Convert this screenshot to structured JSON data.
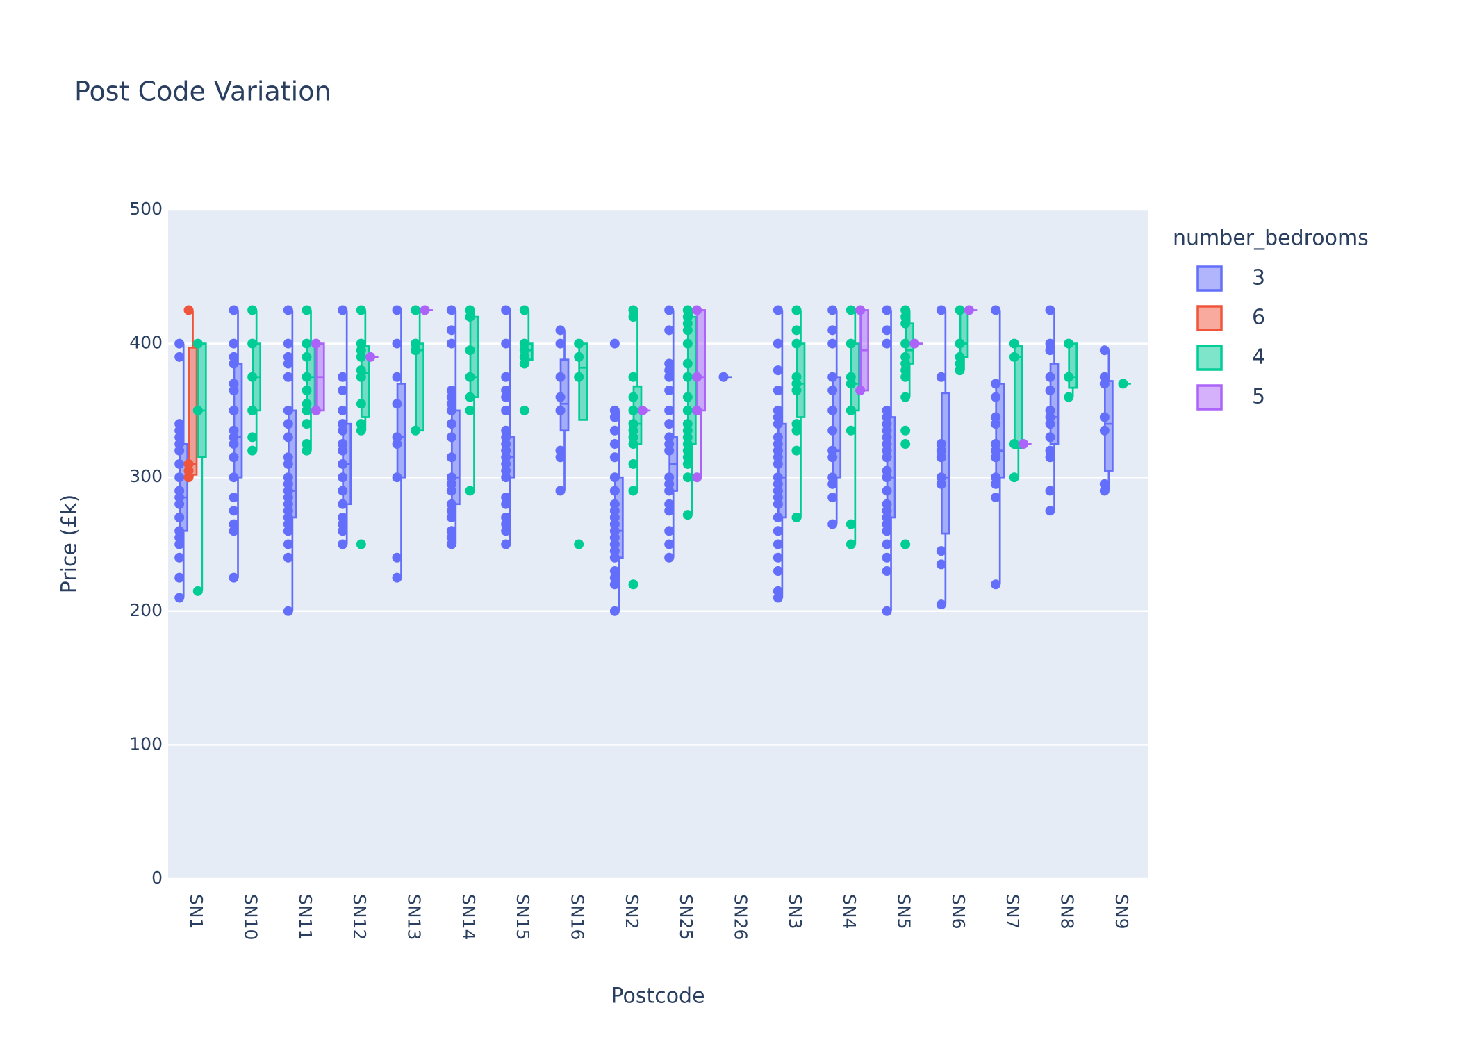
{
  "chart_data": {
    "type": "box",
    "title": "Post Code Variation",
    "x_label": "Postcode",
    "y_label": "Price (£k)",
    "legend_title": "number_bedrooms",
    "categories": [
      "SN1",
      "SN10",
      "SN11",
      "SN12",
      "SN13",
      "SN14",
      "SN15",
      "SN16",
      "SN2",
      "SN25",
      "SN26",
      "SN3",
      "SN4",
      "SN5",
      "SN6",
      "SN7",
      "SN8",
      "SN9"
    ],
    "ylim": [
      0,
      500
    ],
    "yticks": [
      0,
      100,
      200,
      300,
      400,
      500
    ],
    "grid": true,
    "series": [
      {
        "name": "3",
        "color": "#636efa",
        "boxes": [
          {
            "min": 210,
            "q1": 260,
            "median": 285,
            "q3": 325,
            "max": 400,
            "points": [
              210,
              225,
              240,
              250,
              255,
              260,
              270,
              280,
              285,
              290,
              300,
              310,
              320,
              325,
              330,
              335,
              340,
              390,
              400
            ]
          },
          {
            "min": 225,
            "q1": 300,
            "median": 330,
            "q3": 385,
            "max": 425,
            "points": [
              225,
              260,
              265,
              275,
              285,
              300,
              315,
              325,
              330,
              335,
              350,
              365,
              370,
              385,
              390,
              400,
              425
            ]
          },
          {
            "min": 200,
            "q1": 270,
            "median": 290,
            "q3": 350,
            "max": 425,
            "points": [
              200,
              240,
              250,
              260,
              265,
              270,
              275,
              280,
              285,
              290,
              295,
              300,
              310,
              315,
              330,
              340,
              350,
              375,
              385,
              390,
              400,
              425
            ]
          },
          {
            "min": 250,
            "q1": 280,
            "median": 310,
            "q3": 340,
            "max": 425,
            "points": [
              250,
              260,
              265,
              270,
              280,
              290,
              300,
              310,
              320,
              325,
              335,
              340,
              350,
              365,
              375,
              425
            ]
          },
          {
            "min": 225,
            "q1": 300,
            "median": 330,
            "q3": 370,
            "max": 425,
            "points": [
              225,
              240,
              300,
              325,
              330,
              355,
              375,
              400,
              425
            ]
          },
          {
            "min": 250,
            "q1": 280,
            "median": 300,
            "q3": 350,
            "max": 425,
            "points": [
              250,
              255,
              260,
              270,
              275,
              280,
              290,
              295,
              300,
              315,
              330,
              340,
              350,
              355,
              360,
              365,
              400,
              410,
              425
            ]
          },
          {
            "min": 250,
            "q1": 300,
            "median": 315,
            "q3": 330,
            "max": 425,
            "points": [
              250,
              260,
              265,
              270,
              280,
              285,
              300,
              305,
              310,
              315,
              320,
              325,
              330,
              335,
              350,
              360,
              365,
              375,
              400,
              425
            ]
          },
          {
            "min": 290,
            "q1": 335,
            "median": 355,
            "q3": 388,
            "max": 410,
            "points": [
              290,
              315,
              320,
              350,
              360,
              375,
              400,
              410
            ]
          },
          {
            "min": 200,
            "q1": 240,
            "median": 260,
            "q3": 300,
            "max": 350,
            "points": [
              200,
              220,
              225,
              230,
              240,
              245,
              250,
              255,
              260,
              265,
              270,
              275,
              280,
              290,
              300,
              315,
              325,
              335,
              345,
              350,
              400
            ]
          },
          {
            "min": 240,
            "q1": 290,
            "median": 310,
            "q3": 330,
            "max": 425,
            "points": [
              240,
              250,
              260,
              275,
              280,
              290,
              295,
              300,
              320,
              325,
              330,
              340,
              350,
              365,
              375,
              380,
              385,
              410,
              425
            ]
          },
          {
            "min": 375,
            "q1": 375,
            "median": 375,
            "q3": 375,
            "max": 375,
            "points": [
              375
            ]
          },
          {
            "min": 210,
            "q1": 270,
            "median": 300,
            "q3": 340,
            "max": 425,
            "points": [
              210,
              215,
              230,
              240,
              250,
              260,
              270,
              280,
              285,
              290,
              295,
              300,
              310,
              315,
              320,
              325,
              330,
              340,
              345,
              350,
              365,
              380,
              400,
              425
            ]
          },
          {
            "min": 265,
            "q1": 300,
            "median": 320,
            "q3": 375,
            "max": 425,
            "points": [
              265,
              285,
              295,
              300,
              315,
              320,
              335,
              350,
              365,
              375,
              400,
              410,
              425
            ]
          },
          {
            "min": 200,
            "q1": 270,
            "median": 300,
            "q3": 345,
            "max": 425,
            "points": [
              200,
              230,
              240,
              250,
              260,
              265,
              270,
              275,
              280,
              290,
              300,
              305,
              315,
              320,
              325,
              330,
              335,
              340,
              345,
              350,
              400,
              410,
              425
            ]
          },
          {
            "min": 205,
            "q1": 258,
            "median": 300,
            "q3": 363,
            "max": 425,
            "points": [
              205,
              235,
              245,
              295,
              300,
              315,
              320,
              325,
              375,
              425
            ]
          },
          {
            "min": 220,
            "q1": 300,
            "median": 320,
            "q3": 370,
            "max": 425,
            "points": [
              220,
              285,
              295,
              300,
              315,
              320,
              325,
              340,
              345,
              360,
              370,
              425
            ]
          },
          {
            "min": 275,
            "q1": 325,
            "median": 345,
            "q3": 385,
            "max": 425,
            "points": [
              275,
              290,
              315,
              320,
              330,
              340,
              345,
              350,
              365,
              375,
              395,
              400,
              425
            ]
          },
          {
            "min": 290,
            "q1": 305,
            "median": 340,
            "q3": 372,
            "max": 395,
            "points": [
              290,
              295,
              335,
              345,
              370,
              375,
              395
            ]
          }
        ]
      },
      {
        "name": "6",
        "color": "#EF553B",
        "boxes": [
          {
            "min": 300,
            "q1": 302,
            "median": 310,
            "q3": 397,
            "max": 425,
            "points": [
              300,
              305,
              310,
              425
            ]
          },
          null,
          null,
          null,
          null,
          null,
          null,
          null,
          null,
          null,
          null,
          null,
          null,
          null,
          null,
          null,
          null,
          null
        ]
      },
      {
        "name": "4",
        "color": "#00cc96",
        "boxes": [
          {
            "min": 215,
            "q1": 315,
            "median": 350,
            "q3": 400,
            "max": 400,
            "points": [
              215,
              350,
              400
            ]
          },
          {
            "min": 320,
            "q1": 350,
            "median": 375,
            "q3": 400,
            "max": 425,
            "points": [
              320,
              330,
              350,
              375,
              400,
              425
            ]
          },
          {
            "min": 320,
            "q1": 350,
            "median": 375,
            "q3": 400,
            "max": 425,
            "points": [
              320,
              325,
              340,
              350,
              355,
              365,
              375,
              390,
              400,
              425
            ]
          },
          {
            "min": 335,
            "q1": 345,
            "median": 378,
            "q3": 398,
            "max": 425,
            "points": [
              250,
              335,
              340,
              355,
              375,
              380,
              390,
              395,
              400,
              425
            ]
          },
          {
            "min": 335,
            "q1": 335,
            "median": 395,
            "q3": 400,
            "max": 425,
            "points": [
              335,
              395,
              400,
              425
            ]
          },
          {
            "min": 290,
            "q1": 360,
            "median": 375,
            "q3": 420,
            "max": 425,
            "points": [
              290,
              350,
              360,
              375,
              395,
              420,
              425
            ]
          },
          {
            "min": 385,
            "q1": 388,
            "median": 395,
            "q3": 400,
            "max": 425,
            "points": [
              350,
              385,
              390,
              395,
              400,
              425
            ]
          },
          {
            "min": 343,
            "q1": 343,
            "median": 382,
            "q3": 400,
            "max": 400,
            "points": [
              250,
              375,
              390,
              400
            ]
          },
          {
            "min": 290,
            "q1": 325,
            "median": 340,
            "q3": 368,
            "max": 425,
            "points": [
              220,
              290,
              310,
              325,
              330,
              335,
              340,
              350,
              360,
              375,
              420,
              425
            ]
          },
          {
            "min": 272,
            "q1": 325,
            "median": 350,
            "q3": 420,
            "max": 425,
            "points": [
              272,
              300,
              310,
              315,
              320,
              325,
              330,
              335,
              340,
              350,
              360,
              375,
              385,
              400,
              410,
              415,
              420,
              425
            ]
          },
          null,
          {
            "min": 270,
            "q1": 345,
            "median": 370,
            "q3": 400,
            "max": 425,
            "points": [
              270,
              320,
              335,
              340,
              365,
              370,
              375,
              400,
              410,
              425
            ]
          },
          {
            "min": 250,
            "q1": 350,
            "median": 370,
            "q3": 400,
            "max": 425,
            "points": [
              250,
              265,
              335,
              350,
              370,
              375,
              400,
              425
            ]
          },
          {
            "min": 360,
            "q1": 385,
            "median": 395,
            "q3": 415,
            "max": 425,
            "points": [
              250,
              325,
              335,
              360,
              375,
              380,
              385,
              390,
              400,
              415,
              420,
              425
            ]
          },
          {
            "min": 380,
            "q1": 390,
            "median": 400,
            "q3": 425,
            "max": 425,
            "points": [
              380,
              385,
              390,
              400,
              425
            ]
          },
          {
            "min": 300,
            "q1": 322,
            "median": 390,
            "q3": 398,
            "max": 400,
            "points": [
              300,
              325,
              390,
              400
            ]
          },
          {
            "min": 360,
            "q1": 367,
            "median": 375,
            "q3": 400,
            "max": 400,
            "points": [
              360,
              375,
              400
            ]
          },
          {
            "min": 370,
            "q1": 370,
            "median": 370,
            "q3": 370,
            "max": 370,
            "points": [
              370
            ]
          }
        ]
      },
      {
        "name": "5",
        "color": "#ab63fa",
        "boxes": [
          null,
          null,
          {
            "min": 350,
            "q1": 350,
            "median": 375,
            "q3": 400,
            "max": 400,
            "points": [
              350,
              400
            ]
          },
          {
            "min": 390,
            "q1": 390,
            "median": 390,
            "q3": 390,
            "max": 390,
            "points": [
              390
            ]
          },
          {
            "min": 425,
            "q1": 425,
            "median": 425,
            "q3": 425,
            "max": 425,
            "points": [
              425
            ]
          },
          null,
          null,
          null,
          {
            "min": 350,
            "q1": 350,
            "median": 350,
            "q3": 350,
            "max": 350,
            "points": [
              350
            ]
          },
          {
            "min": 300,
            "q1": 350,
            "median": 375,
            "q3": 425,
            "max": 425,
            "points": [
              300,
              350,
              375,
              425
            ]
          },
          null,
          null,
          {
            "min": 365,
            "q1": 365,
            "median": 395,
            "q3": 425,
            "max": 425,
            "points": [
              365,
              425
            ]
          },
          {
            "min": 400,
            "q1": 400,
            "median": 400,
            "q3": 400,
            "max": 400,
            "points": [
              400
            ]
          },
          {
            "min": 425,
            "q1": 425,
            "median": 425,
            "q3": 425,
            "max": 425,
            "points": [
              425
            ]
          },
          {
            "min": 325,
            "q1": 325,
            "median": 325,
            "q3": 325,
            "max": 325,
            "points": [
              325
            ]
          },
          null,
          null
        ]
      }
    ]
  }
}
